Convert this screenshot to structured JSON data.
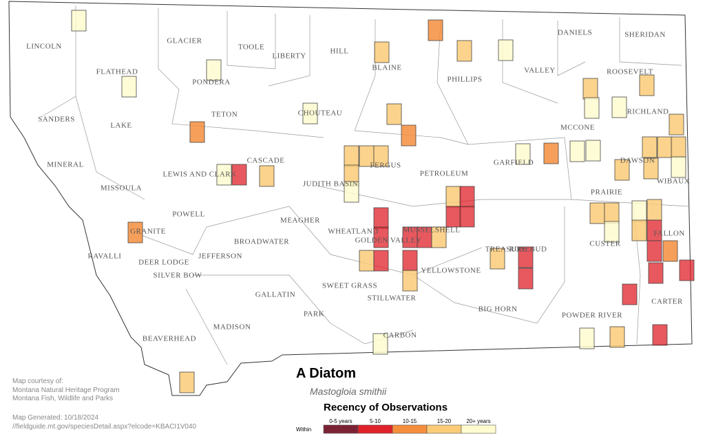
{
  "counties": [
    "LINCOLN",
    "GLACIER",
    "TOOLE",
    "LIBERTY",
    "HILL",
    "BLAINE",
    "PHILLIPS",
    "VALLEY",
    "DANIELS",
    "SHERIDAN",
    "FLATHEAD",
    "PONDERA",
    "ROOSEVELT",
    "SANDERS",
    "TETON",
    "CHOUTEAU",
    "RICHLAND",
    "LAKE",
    "MCCONE",
    "MINERAL",
    "LEWIS AND CLARK",
    "CASCADE",
    "FERGUS",
    "PETROLEUM",
    "GARFIELD",
    "DAWSON",
    "WIBAUX",
    "MISSOULA",
    "JUDITH BASIN",
    "PRAIRIE",
    "POWELL",
    "MEAGHER",
    "WHEATLAND",
    "MUSSELSHELL",
    "GRANITE",
    "GOLDEN VALLEY",
    "FALLON",
    "CUSTER",
    "BROADWATER",
    "RAVALLI",
    "DEER LODGE",
    "JEFFERSON",
    "TREASURE",
    "ROSEBUD",
    "SILVER BOW",
    "YELLOWSTONE",
    "SWEET GRASS",
    "GALLATIN",
    "STILLWATER",
    "CARTER",
    "BIG HORN",
    "PARK",
    "POWDER RIVER",
    "MADISON",
    "CARBON",
    "BEAVERHEAD"
  ],
  "title": "A Diatom",
  "subtitle": "Mastogloia smithii",
  "legend": {
    "title": "Recency of Observations",
    "prefix": "Within",
    "classes": [
      {
        "label": "0-5 years",
        "color": "#7b2335"
      },
      {
        "label": "5-10",
        "color": "#e0222a"
      },
      {
        "label": "10-15",
        "color": "#f58e3d"
      },
      {
        "label": "15-20",
        "color": "#fbcb78"
      },
      {
        "label": "20+ years",
        "color": "#fefccf"
      }
    ]
  },
  "credits": [
    "Map courtesy of:",
    "Montana Natural Heritage Program",
    "Montana Fish, Wildlife and Parks"
  ],
  "generated": "Map Generated: 10/18/2024",
  "url": "//fieldguide.mt.gov/speciesDetail.aspx?elcode=KBACI1V040"
}
